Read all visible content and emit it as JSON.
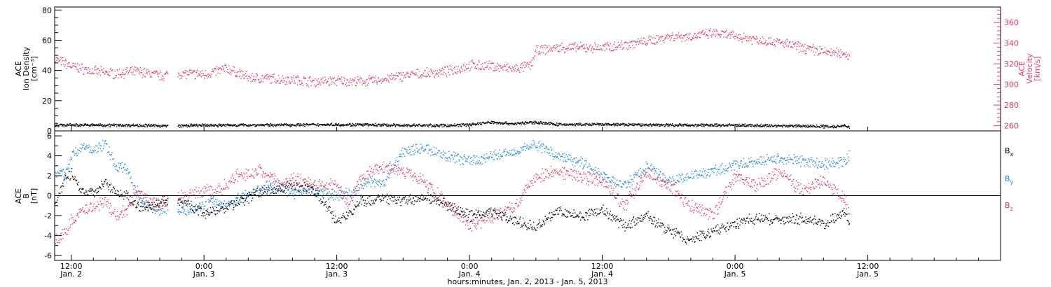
{
  "colors": {
    "density": "#000000",
    "velocity": "#e8375f",
    "bx": "#000000",
    "by": "#1e88e5",
    "bz": "#e8375f",
    "axis": "#000000"
  },
  "xaxis": {
    "title": "hours:minutes, Jan. 2, 2013 - Jan. 5, 2013",
    "range_hours": [
      -1.5,
      84
    ],
    "ticks": [
      {
        "h": 0,
        "time": "12:00",
        "day": "Jan. 2"
      },
      {
        "h": 12,
        "time": "0:00",
        "day": "Jan. 3"
      },
      {
        "h": 24,
        "time": "12:00",
        "day": "Jan. 3"
      },
      {
        "h": 36,
        "time": "0:00",
        "day": "Jan. 4"
      },
      {
        "h": 48,
        "time": "12:00",
        "day": "Jan. 4"
      },
      {
        "h": 60,
        "time": "0:00",
        "day": "Jan. 5"
      },
      {
        "h": 72,
        "time": "12:00",
        "day": "Jan. 5"
      }
    ]
  },
  "panels": {
    "top": {
      "left_label": [
        "ACE",
        "Ion Density",
        "[cm⁻³]"
      ],
      "right_label": [
        "ACE",
        "Velocity",
        "[km/s]"
      ],
      "left_ticks": [
        "0",
        "20",
        "40",
        "60",
        "80"
      ],
      "right_ticks": [
        "260",
        "280",
        "300",
        "320",
        "340",
        "360"
      ]
    },
    "bottom": {
      "left_label": [
        "ACE",
        "B",
        "[nT]"
      ],
      "left_ticks": [
        "-6",
        "-4",
        "-2",
        "0",
        "2",
        "4",
        "6"
      ],
      "legend": [
        {
          "label": "Bx",
          "main": "B",
          "sub": "x",
          "color": "#000000"
        },
        {
          "label": "By",
          "main": "B",
          "sub": "y",
          "color": "#1e88e5"
        },
        {
          "label": "Bz",
          "main": "B",
          "sub": "z",
          "color": "#e8375f"
        }
      ]
    }
  },
  "chart_data": [
    {
      "type": "scatter",
      "title": "",
      "ylabel": "ACE Ion Density [cm⁻³]",
      "ylabel2": "ACE Velocity [km/s]",
      "xlabel": "hours:minutes, Jan. 2, 2013 - Jan. 5, 2013",
      "xlim_hours": [
        -1.5,
        84
      ],
      "ylim": [
        0,
        82
      ],
      "ylim2": [
        255,
        375
      ],
      "series": [
        {
          "name": "Ion Density",
          "axis": "left",
          "x_hours": [
            -1.5,
            0,
            6,
            9,
            12,
            18,
            24,
            30,
            34,
            36,
            38,
            40,
            42,
            44,
            48,
            54,
            60,
            66,
            69,
            70,
            70.3
          ],
          "values": [
            4,
            4.2,
            4,
            3.5,
            4,
            4.2,
            4.5,
            4,
            3.8,
            4.5,
            6,
            5,
            6,
            4.5,
            4.5,
            4.2,
            4,
            3.5,
            3.2,
            4,
            2.5
          ]
        },
        {
          "name": "Velocity",
          "axis": "right",
          "x_hours": [
            -1.5,
            0,
            2,
            4,
            6,
            8,
            10,
            12,
            14,
            16,
            18,
            20,
            22,
            24,
            26,
            28,
            30,
            32,
            34,
            36,
            38,
            40,
            41.5,
            42,
            44,
            46,
            48,
            50,
            52,
            54,
            56,
            58,
            60,
            62,
            64,
            66,
            68,
            70,
            70.3
          ],
          "values": [
            325,
            318,
            313,
            311,
            313,
            309,
            311,
            310,
            316,
            307,
            306,
            305,
            303,
            304,
            303,
            305,
            309,
            311,
            313,
            319,
            318,
            315,
            319,
            333,
            336,
            336,
            336,
            339,
            342,
            347,
            347,
            350,
            347,
            344,
            341,
            336,
            332,
            330,
            327
          ]
        }
      ]
    },
    {
      "type": "scatter",
      "title": "",
      "ylabel": "ACE B [nT]",
      "xlabel": "hours:minutes, Jan. 2, 2013 - Jan. 5, 2013",
      "xlim_hours": [
        -1.5,
        84
      ],
      "ylim": [
        -6.5,
        6.5
      ],
      "zero_line": true,
      "series": [
        {
          "name": "Bx",
          "x_hours": [
            -1.5,
            -0.5,
            0,
            1,
            2,
            3,
            4,
            5,
            6,
            7,
            8,
            9,
            10,
            12,
            13,
            14,
            15,
            16,
            17,
            18,
            19,
            20,
            21,
            22,
            24,
            25,
            26,
            27,
            28,
            30,
            32,
            34,
            36,
            38,
            40,
            42,
            44,
            46,
            48,
            50,
            52,
            54,
            56,
            58,
            60,
            62,
            64,
            66,
            68,
            70,
            70.3
          ],
          "values": [
            -1,
            2,
            2.2,
            0.5,
            0.3,
            1.5,
            0.5,
            0,
            -1,
            -1.2,
            -0.5,
            -0.3,
            -0.5,
            -1.8,
            -1.5,
            -1,
            -0.7,
            -0.2,
            0.5,
            0.5,
            0.8,
            1,
            0.8,
            0.5,
            -2.5,
            -2,
            -0.5,
            -0.5,
            -0.2,
            -0.5,
            0,
            -1,
            -2,
            -1.5,
            -2.5,
            -3,
            -1.5,
            -2,
            -1.5,
            -3,
            -2,
            -3.5,
            -4.5,
            -3.5,
            -2.8,
            -2.2,
            -2.5,
            -2.2,
            -2.8,
            -1.5,
            -3
          ]
        },
        {
          "name": "By",
          "x_hours": [
            -1.5,
            -0.5,
            0,
            1,
            2,
            3,
            4,
            5,
            6,
            7,
            8,
            9,
            10,
            12,
            13,
            14,
            15,
            16,
            17,
            18,
            19,
            20,
            21,
            22,
            24,
            25,
            26,
            27,
            28,
            30,
            32,
            34,
            36,
            38,
            40,
            42,
            44,
            46,
            48,
            50,
            52,
            54,
            56,
            58,
            60,
            62,
            64,
            66,
            68,
            70,
            70.3
          ],
          "values": [
            2,
            2.5,
            4,
            5,
            4.5,
            5.3,
            3,
            2.8,
            0,
            -1,
            -1.5,
            -1,
            -1.5,
            -1,
            -0.5,
            -1,
            -0.3,
            0.2,
            0.8,
            1,
            0.8,
            0.2,
            0.5,
            0.5,
            0,
            0.3,
            0.5,
            1.5,
            1,
            4.5,
            4.8,
            4,
            3.5,
            4,
            4.5,
            5.2,
            4,
            3.5,
            2,
            1,
            3,
            1.5,
            2,
            2.5,
            3,
            3.5,
            3.8,
            3.5,
            3.2,
            3.5,
            4
          ]
        },
        {
          "name": "Bz",
          "x_hours": [
            -1.5,
            -0.5,
            0,
            1,
            2,
            3,
            4,
            5,
            6,
            7,
            8,
            9,
            10,
            12,
            13,
            14,
            15,
            16,
            17,
            18,
            19,
            20,
            21,
            22,
            24,
            25,
            26,
            27,
            28,
            30,
            32,
            34,
            36,
            38,
            40,
            42,
            44,
            46,
            48,
            50,
            52,
            54,
            56,
            58,
            60,
            62,
            64,
            66,
            68,
            70,
            70.3
          ],
          "values": [
            -4.5,
            -3.5,
            -2.5,
            -1.5,
            -1,
            -0.5,
            -2,
            -1.5,
            0.5,
            -0.5,
            -1,
            -0.5,
            0,
            0.5,
            0.3,
            1.2,
            2,
            2.2,
            2.5,
            2,
            1,
            1.8,
            1.5,
            1.2,
            1,
            -1,
            1.5,
            2.5,
            3,
            2.5,
            1.5,
            -1,
            -3,
            -2,
            -1,
            2,
            2.5,
            2,
            1.5,
            -1,
            2.5,
            1,
            -1,
            -2,
            2,
            1,
            2.5,
            0.5,
            1.5,
            -0.5,
            -2
          ]
        }
      ]
    }
  ]
}
